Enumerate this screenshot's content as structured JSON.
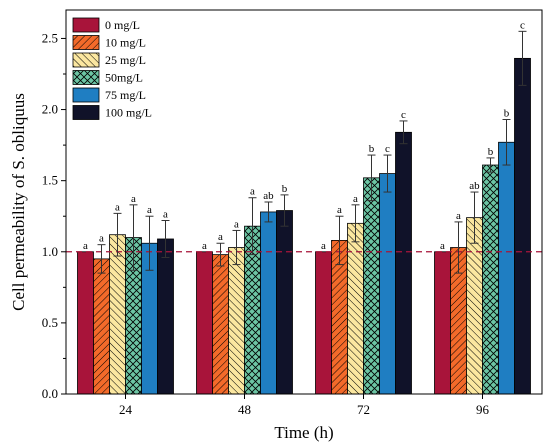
{
  "chart_data": {
    "type": "bar",
    "categories": [
      "24",
      "48",
      "72",
      "96"
    ],
    "xlabel": "Time (h)",
    "ylabel": "Cell permeability of S. obliquus",
    "ylim": [
      0,
      2.7
    ],
    "yticks": [
      "0.0",
      "0.5",
      "1.0",
      "1.5",
      "2.0",
      "2.5"
    ],
    "reference_line": 1.0,
    "legend_position": "top-left",
    "series": [
      {
        "name": "0 mg/L",
        "color": "#a8143a",
        "pattern": "solid",
        "values": [
          1.0,
          1.0,
          1.0,
          1.0
        ],
        "errors": [
          0,
          0,
          0,
          0
        ],
        "labels": [
          "a",
          "a",
          "a",
          "a"
        ]
      },
      {
        "name": "10 mg/L",
        "color": "#f36a2a",
        "pattern": "diag-right",
        "values": [
          0.95,
          0.98,
          1.08,
          1.03
        ],
        "errors": [
          0.1,
          0.08,
          0.17,
          0.18
        ],
        "labels": [
          "a",
          "a",
          "a",
          "a"
        ]
      },
      {
        "name": "25 mg/L",
        "color": "#fbe7a0",
        "pattern": "diag-left",
        "values": [
          1.12,
          1.03,
          1.2,
          1.24
        ],
        "errors": [
          0.15,
          0.12,
          0.13,
          0.18
        ],
        "labels": [
          "a",
          "a",
          "a",
          "ab"
        ]
      },
      {
        "name": "50mg/L",
        "color": "#6cc5a4",
        "pattern": "cross",
        "values": [
          1.1,
          1.18,
          1.52,
          1.61
        ],
        "errors": [
          0.23,
          0.2,
          0.16,
          0.05
        ],
        "labels": [
          "a",
          "a",
          "b",
          "b"
        ]
      },
      {
        "name": "75 mg/L",
        "color": "#1f7ec2",
        "pattern": "solid",
        "values": [
          1.06,
          1.28,
          1.55,
          1.77
        ],
        "errors": [
          0.19,
          0.07,
          0.13,
          0.16
        ],
        "labels": [
          "a",
          "ab",
          "c",
          "b"
        ]
      },
      {
        "name": "100 mg/L",
        "color": "#101229",
        "pattern": "solid",
        "values": [
          1.09,
          1.29,
          1.84,
          2.36
        ],
        "errors": [
          0.13,
          0.11,
          0.08,
          0.19
        ],
        "labels": [
          "a",
          "b",
          "c",
          "c"
        ]
      }
    ]
  }
}
